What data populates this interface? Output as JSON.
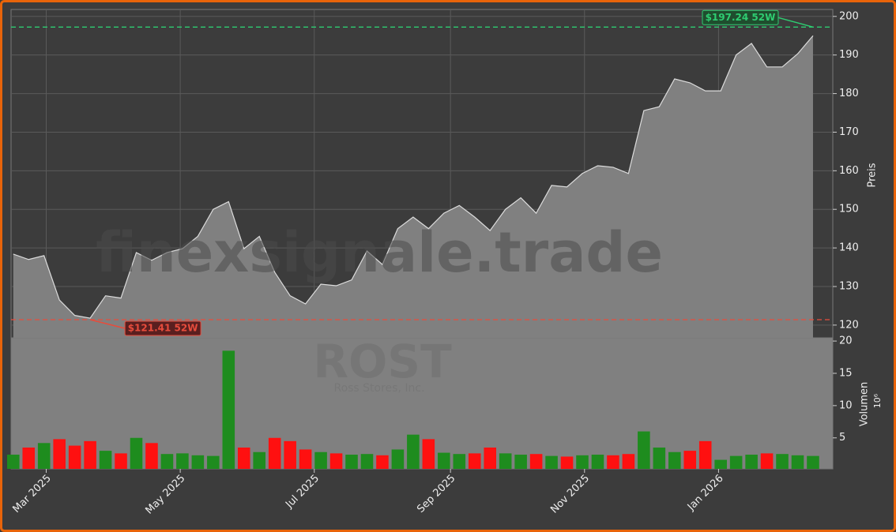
{
  "chart_data": {
    "type": "stock",
    "watermark": "finexsignale.trade",
    "ticker": "ROST",
    "company": "Ross Stores, Inc.",
    "y_label": "Preis",
    "y2_label": "Volumen",
    "y2_unit": "10⁶",
    "x": [
      "2025-02-14",
      "2025-02-21",
      "2025-02-28",
      "2025-03-07",
      "2025-03-14",
      "2025-03-21",
      "2025-03-28",
      "2025-04-04",
      "2025-04-11",
      "2025-04-18",
      "2025-04-25",
      "2025-05-02",
      "2025-05-09",
      "2025-05-16",
      "2025-05-23",
      "2025-05-30",
      "2025-06-06",
      "2025-06-13",
      "2025-06-20",
      "2025-06-27",
      "2025-07-04",
      "2025-07-11",
      "2025-07-18",
      "2025-07-25",
      "2025-08-01",
      "2025-08-08",
      "2025-08-15",
      "2025-08-22",
      "2025-08-29",
      "2025-09-05",
      "2025-09-12",
      "2025-09-19",
      "2025-09-26",
      "2025-10-03",
      "2025-10-10",
      "2025-10-17",
      "2025-10-24",
      "2025-10-31",
      "2025-11-07",
      "2025-11-14",
      "2025-11-21",
      "2025-11-28",
      "2025-12-05",
      "2025-12-12",
      "2025-12-19",
      "2025-12-26",
      "2026-01-02",
      "2026-01-09",
      "2026-01-16",
      "2026-01-23",
      "2026-01-30",
      "2026-02-06",
      "2026-02-13"
    ],
    "series": [
      {
        "name": "Preis",
        "color": "#808080",
        "values": [
          138.4,
          137,
          138,
          126.5,
          122.5,
          121.8,
          127.6,
          127,
          138.8,
          136.8,
          138.8,
          139.8,
          143,
          150,
          152,
          139.8,
          143,
          133.7,
          127.6,
          125.5,
          130.6,
          130.2,
          131.7,
          139.2,
          135.7,
          145,
          148,
          145,
          149,
          151,
          148,
          144.5,
          150,
          153,
          149,
          156.2,
          155.8,
          159.3,
          161.3,
          160.9,
          159.3,
          175.6,
          176.6,
          183.8,
          182.8,
          180.7,
          180.7,
          190,
          193,
          186.9,
          186.9,
          190.3,
          195
        ]
      },
      {
        "name": "Volumen",
        "axis": "y2",
        "up_color": "#1e8c1e",
        "down_color": "#ff1010",
        "values": [
          2.4,
          3.5,
          4.2,
          4.8,
          3.8,
          4.5,
          3,
          2.6,
          5,
          4.2,
          2.5,
          2.6,
          2.3,
          2.2,
          18.5,
          3.5,
          2.8,
          5,
          4.5,
          3.2,
          2.8,
          2.6,
          2.4,
          2.5,
          2.3,
          3.2,
          5.5,
          4.8,
          2.7,
          2.5,
          2.6,
          3.5,
          2.6,
          2.4,
          2.5,
          2.2,
          2.1,
          2.3,
          2.4,
          2.3,
          2.5,
          6,
          3.5,
          2.8,
          3,
          4.5,
          1.6,
          2.2,
          2.4,
          2.6,
          2.5,
          2.3,
          2.2
        ]
      }
    ],
    "xlim": [
      "2025-02-13",
      "2026-02-22"
    ],
    "xticks": [
      {
        "value": "2025-03-01",
        "label": "Mar 2025"
      },
      {
        "value": "2025-05-01",
        "label": "May 2025"
      },
      {
        "value": "2025-07-01",
        "label": "Jul 2025"
      },
      {
        "value": "2025-09-01",
        "label": "Sep 2025"
      },
      {
        "value": "2025-11-01",
        "label": "Nov 2025"
      },
      {
        "value": "2026-01-01",
        "label": "Jan 2026"
      }
    ],
    "ylim": [
      116.7,
      201.8
    ],
    "yticks": [
      120,
      130,
      140,
      150,
      160,
      170,
      180,
      190,
      200
    ],
    "y2lim": [
      0.2,
      20.5
    ],
    "y2ticks": [
      5,
      10,
      15,
      20
    ],
    "grid": true,
    "annotations": [
      {
        "value": 197.24,
        "label": "$197.24 52W",
        "x": "2026-02-13",
        "color": "#2ecc71"
      },
      {
        "value": 121.41,
        "label": "$121.41 52W",
        "x": "2025-03-21",
        "color": "#e74c3c"
      }
    ]
  }
}
